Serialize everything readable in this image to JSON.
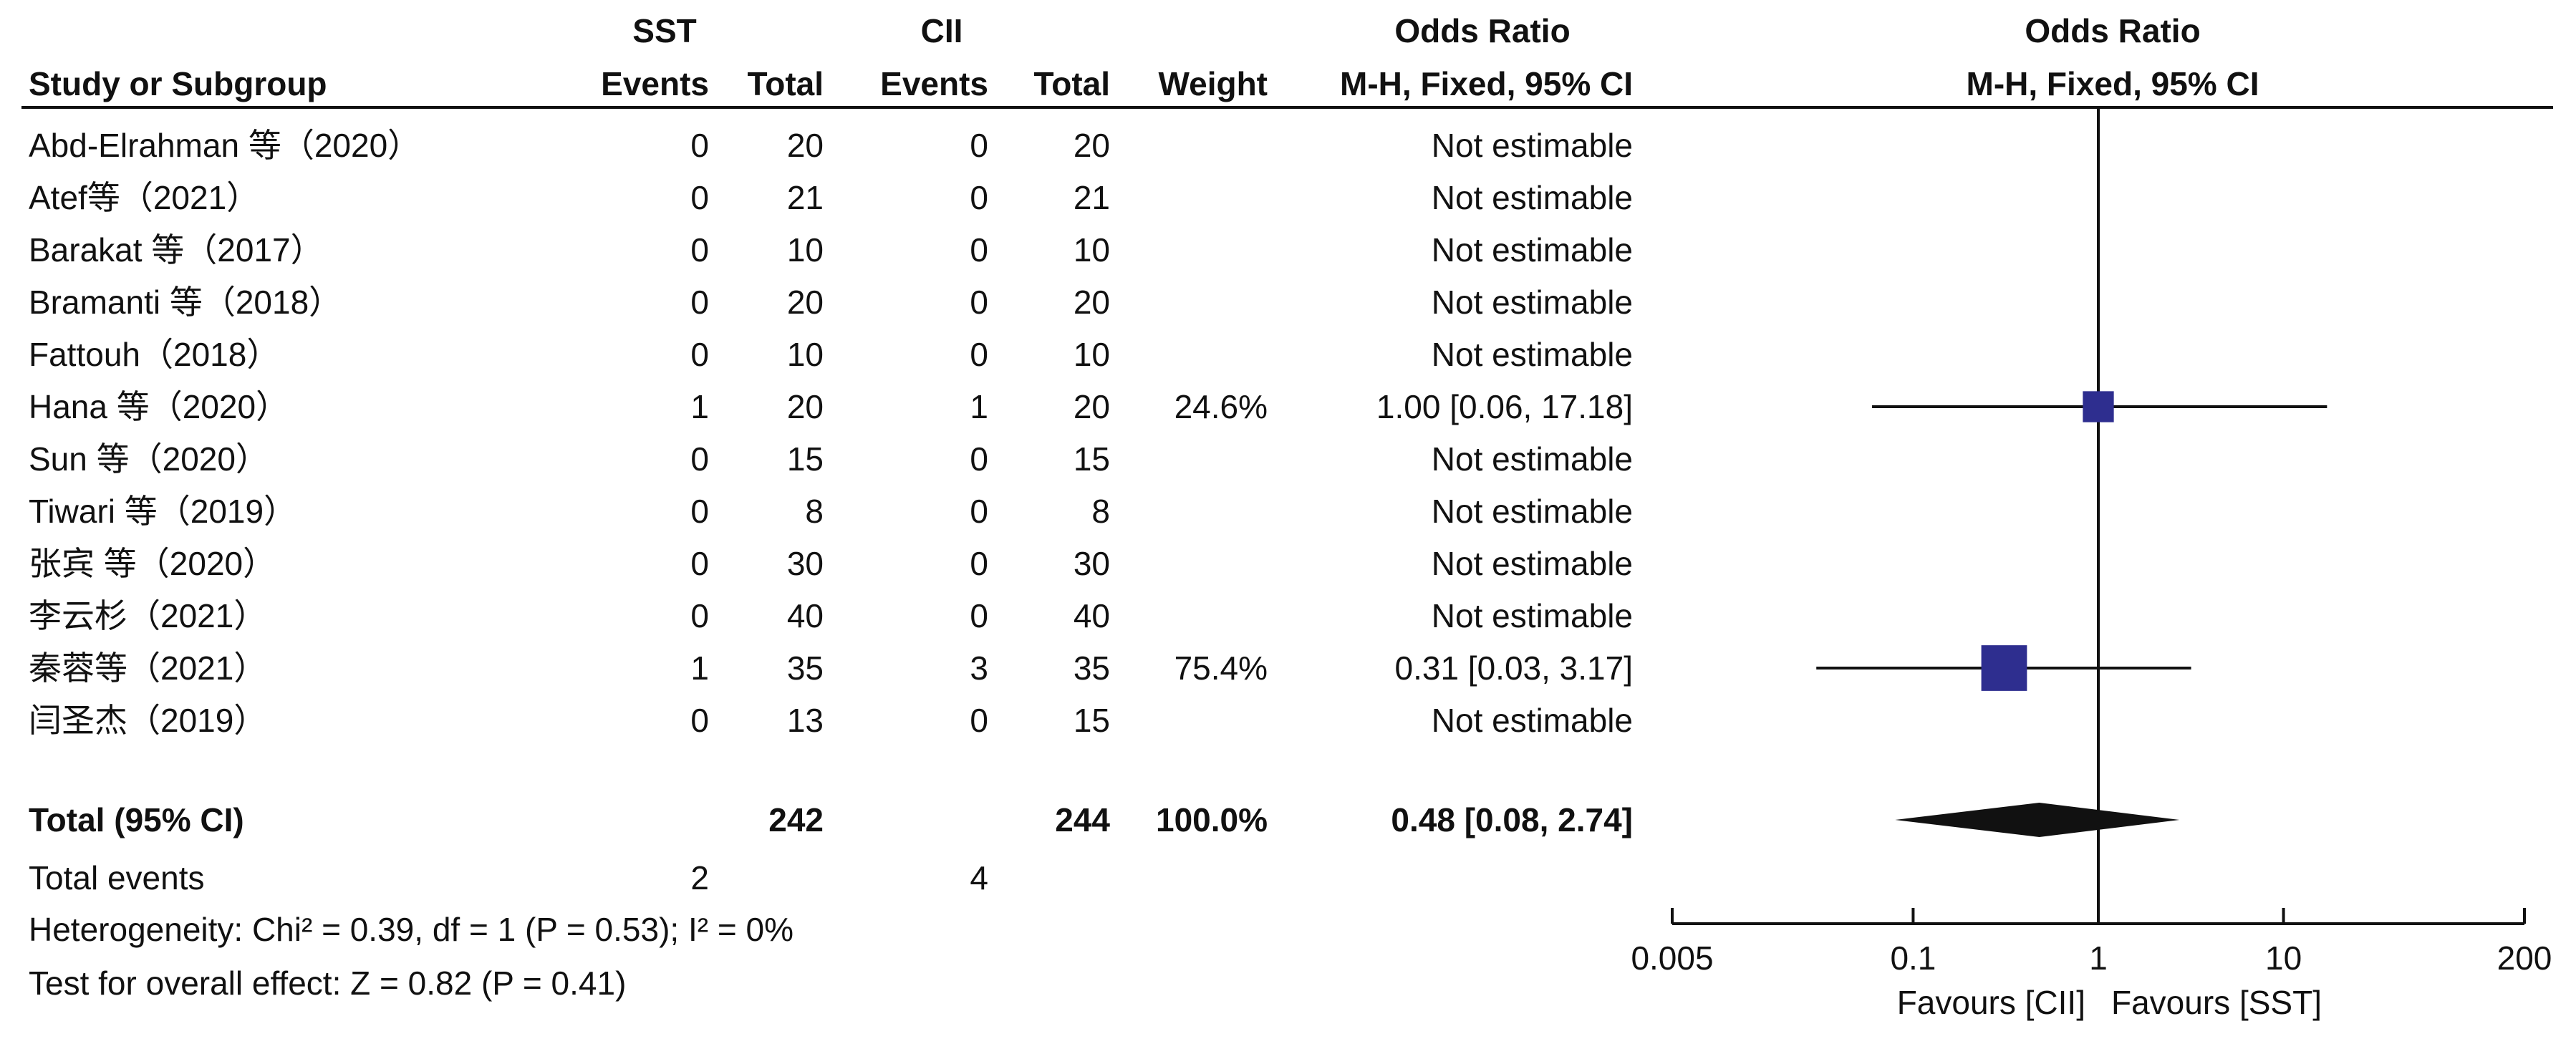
{
  "header": {
    "group1": "SST",
    "group2": "CII",
    "or_left": "Odds Ratio",
    "or_left_sub": "M-H, Fixed, 95% CI",
    "or_right": "Odds Ratio",
    "or_right_sub": "M-H, Fixed, 95% CI",
    "study": "Study or Subgroup",
    "events": "Events",
    "total": "Total",
    "weight": "Weight"
  },
  "studies": [
    {
      "name": "Abd-Elrahman 等（2020）",
      "e1": "0",
      "t1": "20",
      "e2": "0",
      "t2": "20",
      "weight": "",
      "ci": "Not estimable"
    },
    {
      "name": "Atef等（2021）",
      "e1": "0",
      "t1": "21",
      "e2": "0",
      "t2": "21",
      "weight": "",
      "ci": "Not estimable"
    },
    {
      "name": "Barakat 等（2017）",
      "e1": "0",
      "t1": "10",
      "e2": "0",
      "t2": "10",
      "weight": "",
      "ci": "Not estimable"
    },
    {
      "name": "Bramanti 等（2018）",
      "e1": "0",
      "t1": "20",
      "e2": "0",
      "t2": "20",
      "weight": "",
      "ci": "Not estimable"
    },
    {
      "name": "Fattouh（2018）",
      "e1": "0",
      "t1": "10",
      "e2": "0",
      "t2": "10",
      "weight": "",
      "ci": "Not estimable"
    },
    {
      "name": "Hana 等（2020）",
      "e1": "1",
      "t1": "20",
      "e2": "1",
      "t2": "20",
      "weight": "24.6%",
      "ci": "1.00 [0.06, 17.18]"
    },
    {
      "name": "Sun 等（2020）",
      "e1": "0",
      "t1": "15",
      "e2": "0",
      "t2": "15",
      "weight": "",
      "ci": "Not estimable"
    },
    {
      "name": "Tiwari 等（2019）",
      "e1": "0",
      "t1": "8",
      "e2": "0",
      "t2": "8",
      "weight": "",
      "ci": "Not estimable"
    },
    {
      "name": "张宾 等（2020）",
      "e1": "0",
      "t1": "30",
      "e2": "0",
      "t2": "30",
      "weight": "",
      "ci": "Not estimable"
    },
    {
      "name": "李云杉（2021）",
      "e1": "0",
      "t1": "40",
      "e2": "0",
      "t2": "40",
      "weight": "",
      "ci": "Not estimable"
    },
    {
      "name": "秦蓉等（2021）",
      "e1": "1",
      "t1": "35",
      "e2": "3",
      "t2": "35",
      "weight": "75.4%",
      "ci": "0.31 [0.03, 3.17]"
    },
    {
      "name": "闫圣杰（2019）",
      "e1": "0",
      "t1": "13",
      "e2": "0",
      "t2": "15",
      "weight": "",
      "ci": "Not estimable"
    }
  ],
  "total": {
    "label": "Total (95% CI)",
    "t1": "242",
    "t2": "244",
    "weight": "100.0%",
    "ci": "0.48 [0.08, 2.74]"
  },
  "total_events": {
    "label": "Total events",
    "e1": "2",
    "e2": "4"
  },
  "heterogeneity": "Heterogeneity: Chi² = 0.39, df = 1 (P = 0.53); I² = 0%",
  "overall_effect": "Test for overall effect: Z = 0.82 (P = 0.41)",
  "chart_data": {
    "type": "scatter",
    "title": "Odds Ratio",
    "subtitle": "M-H, Fixed, 95% CI",
    "x_scale": "log",
    "xlim": [
      0.005,
      200
    ],
    "x_ticks": [
      0.005,
      0.1,
      1,
      10,
      200
    ],
    "x_tick_labels": [
      "0.005",
      "0.1",
      "1",
      "10",
      "200"
    ],
    "null_line": 1,
    "favours_left": "Favours [CII]",
    "favours_right": "Favours [SST]",
    "studies": [
      {
        "study_index": 5,
        "or": 1.0,
        "lower": 0.06,
        "upper": 17.18,
        "weight": 24.6
      },
      {
        "study_index": 10,
        "or": 0.31,
        "lower": 0.03,
        "upper": 3.17,
        "weight": 75.4
      }
    ],
    "pooled": {
      "or": 0.48,
      "lower": 0.08,
      "upper": 2.74
    },
    "colors": {
      "square": "#2e2e8f",
      "line": "#111111",
      "diamond": "#111111"
    }
  }
}
